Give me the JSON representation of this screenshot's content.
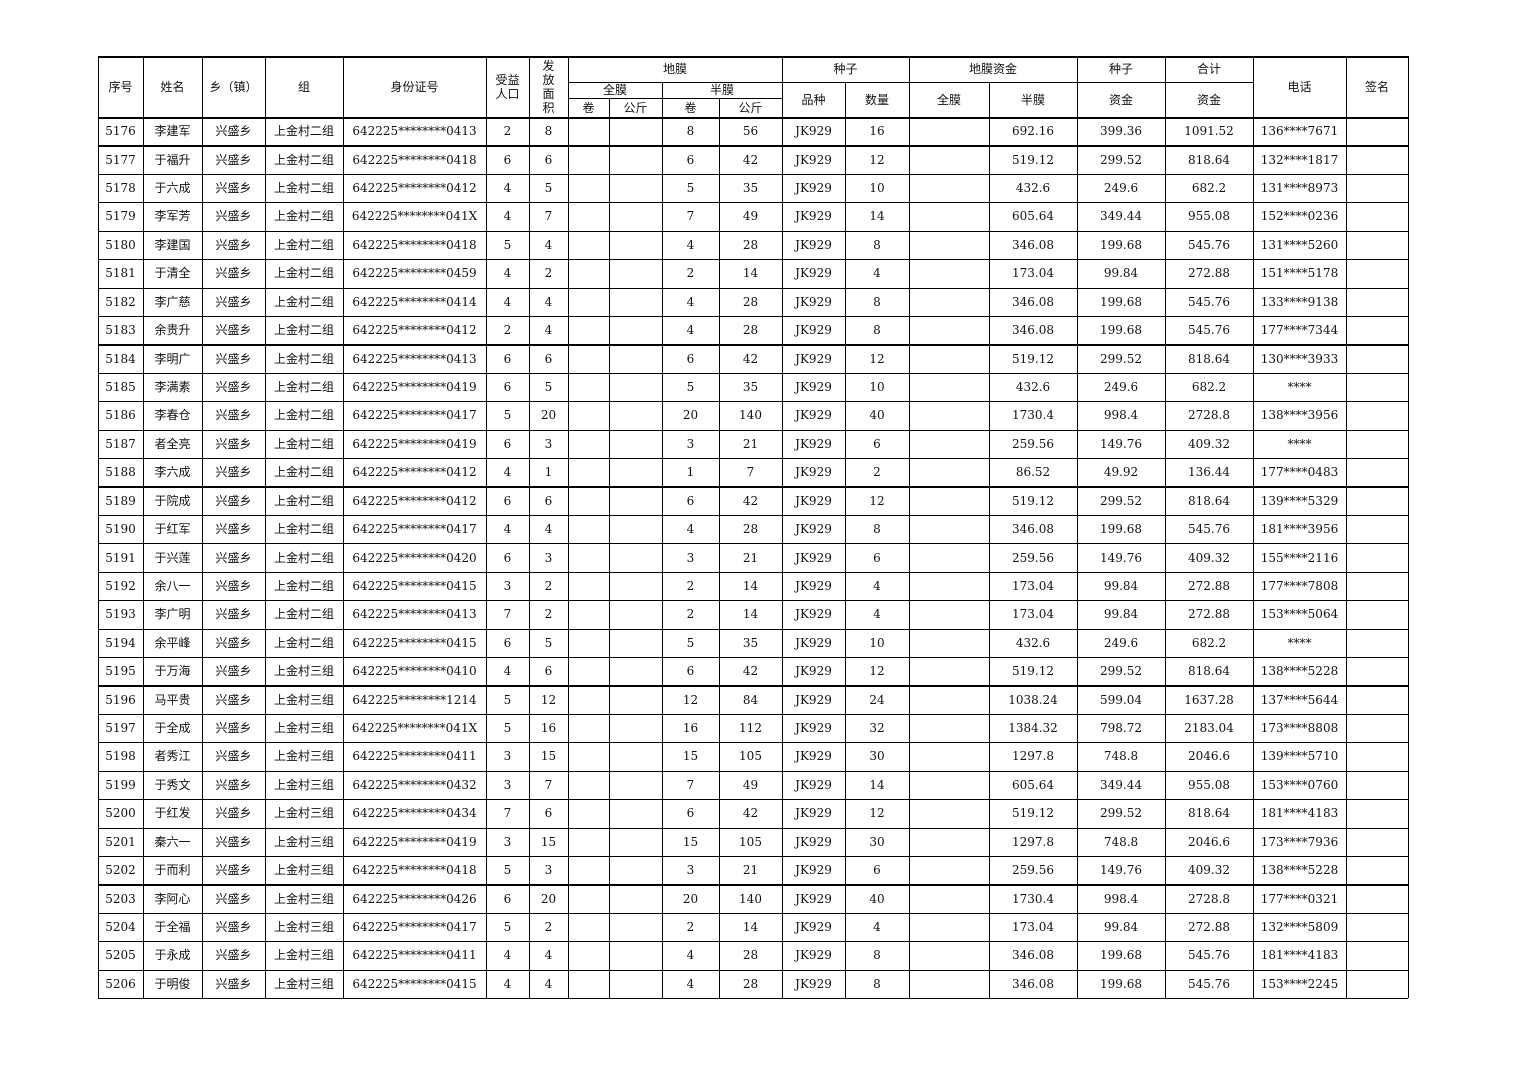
{
  "header": [
    "序号",
    "姓名",
    "乡（镇）",
    "组",
    "身份证号",
    "受益人口",
    "发放面积",
    "地膜",
    "全膜",
    "半膜",
    "卷",
    "公斤",
    "卷",
    "公斤",
    "种子",
    "品种",
    "数量",
    "地膜资金",
    "全膜",
    "半膜",
    "种子",
    "资金",
    "合计",
    "资金",
    "电话",
    "签名"
  ],
  "table": {
    "rows": [
      [
        "5176",
        "李建军",
        "兴盛乡",
        "上金村二组",
        "642225********0413",
        "2",
        "8",
        "8",
        "56",
        "JK929",
        "16",
        "692.16",
        "399.36",
        "1091.52",
        "136****7671"
      ],
      [
        "5177",
        "于福升",
        "兴盛乡",
        "上金村二组",
        "642225********0418",
        "6",
        "6",
        "6",
        "42",
        "JK929",
        "12",
        "519.12",
        "299.52",
        "818.64",
        "132****1817"
      ],
      [
        "5178",
        "于六成",
        "兴盛乡",
        "上金村二组",
        "642225********0412",
        "4",
        "5",
        "5",
        "35",
        "JK929",
        "10",
        "432.6",
        "249.6",
        "682.2",
        "131****8973"
      ],
      [
        "5179",
        "李军芳",
        "兴盛乡",
        "上金村二组",
        "642225********041X",
        "4",
        "7",
        "7",
        "49",
        "JK929",
        "14",
        "605.64",
        "349.44",
        "955.08",
        "152****0236"
      ],
      [
        "5180",
        "李建国",
        "兴盛乡",
        "上金村二组",
        "642225********0418",
        "5",
        "4",
        "4",
        "28",
        "JK929",
        "8",
        "346.08",
        "199.68",
        "545.76",
        "131****5260"
      ],
      [
        "5181",
        "于清全",
        "兴盛乡",
        "上金村二组",
        "642225********0459",
        "4",
        "2",
        "2",
        "14",
        "JK929",
        "4",
        "173.04",
        "99.84",
        "272.88",
        "151****5178"
      ],
      [
        "5182",
        "李广慈",
        "兴盛乡",
        "上金村二组",
        "642225********0414",
        "4",
        "4",
        "4",
        "28",
        "JK929",
        "8",
        "346.08",
        "199.68",
        "545.76",
        "133****9138"
      ],
      [
        "5183",
        "余贵升",
        "兴盛乡",
        "上金村二组",
        "642225********0412",
        "2",
        "4",
        "4",
        "28",
        "JK929",
        "8",
        "346.08",
        "199.68",
        "545.76",
        "177****7344"
      ],
      [
        "5184",
        "李明广",
        "兴盛乡",
        "上金村二组",
        "642225********0413",
        "6",
        "6",
        "6",
        "42",
        "JK929",
        "12",
        "519.12",
        "299.52",
        "818.64",
        "130****3933"
      ],
      [
        "5185",
        "李满素",
        "兴盛乡",
        "上金村二组",
        "642225********0419",
        "6",
        "5",
        "5",
        "35",
        "JK929",
        "10",
        "432.6",
        "249.6",
        "682.2",
        "****"
      ],
      [
        "5186",
        "李春仓",
        "兴盛乡",
        "上金村二组",
        "642225********0417",
        "5",
        "20",
        "20",
        "140",
        "JK929",
        "40",
        "1730.4",
        "998.4",
        "2728.8",
        "138****3956"
      ],
      [
        "5187",
        "者全亮",
        "兴盛乡",
        "上金村二组",
        "642225********0419",
        "6",
        "3",
        "3",
        "21",
        "JK929",
        "6",
        "259.56",
        "149.76",
        "409.32",
        "****"
      ],
      [
        "5188",
        "李六成",
        "兴盛乡",
        "上金村二组",
        "642225********0412",
        "4",
        "1",
        "1",
        "7",
        "JK929",
        "2",
        "86.52",
        "49.92",
        "136.44",
        "177****0483"
      ],
      [
        "5189",
        "于院成",
        "兴盛乡",
        "上金村二组",
        "642225********0412",
        "6",
        "6",
        "6",
        "42",
        "JK929",
        "12",
        "519.12",
        "299.52",
        "818.64",
        "139****5329"
      ],
      [
        "5190",
        "于红军",
        "兴盛乡",
        "上金村二组",
        "642225********0417",
        "4",
        "4",
        "4",
        "28",
        "JK929",
        "8",
        "346.08",
        "199.68",
        "545.76",
        "181****3956"
      ],
      [
        "5191",
        "于兴莲",
        "兴盛乡",
        "上金村二组",
        "642225********0420",
        "6",
        "3",
        "3",
        "21",
        "JK929",
        "6",
        "259.56",
        "149.76",
        "409.32",
        "155****2116"
      ],
      [
        "5192",
        "余八一",
        "兴盛乡",
        "上金村二组",
        "642225********0415",
        "3",
        "2",
        "2",
        "14",
        "JK929",
        "4",
        "173.04",
        "99.84",
        "272.88",
        "177****7808"
      ],
      [
        "5193",
        "李广明",
        "兴盛乡",
        "上金村二组",
        "642225********0413",
        "7",
        "2",
        "2",
        "14",
        "JK929",
        "4",
        "173.04",
        "99.84",
        "272.88",
        "153****5064"
      ],
      [
        "5194",
        "余平峰",
        "兴盛乡",
        "上金村二组",
        "642225********0415",
        "6",
        "5",
        "5",
        "35",
        "JK929",
        "10",
        "432.6",
        "249.6",
        "682.2",
        "****"
      ],
      [
        "5195",
        "于万海",
        "兴盛乡",
        "上金村三组",
        "642225********0410",
        "4",
        "6",
        "6",
        "42",
        "JK929",
        "12",
        "519.12",
        "299.52",
        "818.64",
        "138****5228"
      ],
      [
        "5196",
        "马平贵",
        "兴盛乡",
        "上金村三组",
        "642225********1214",
        "5",
        "12",
        "12",
        "84",
        "JK929",
        "24",
        "1038.24",
        "599.04",
        "1637.28",
        "137****5644"
      ],
      [
        "5197",
        "于全成",
        "兴盛乡",
        "上金村三组",
        "642225********041X",
        "5",
        "16",
        "16",
        "112",
        "JK929",
        "32",
        "1384.32",
        "798.72",
        "2183.04",
        "173****8808"
      ],
      [
        "5198",
        "者秀江",
        "兴盛乡",
        "上金村三组",
        "642225********0411",
        "3",
        "15",
        "15",
        "105",
        "JK929",
        "30",
        "1297.8",
        "748.8",
        "2046.6",
        "139****5710"
      ],
      [
        "5199",
        "于秀文",
        "兴盛乡",
        "上金村三组",
        "642225********0432",
        "3",
        "7",
        "7",
        "49",
        "JK929",
        "14",
        "605.64",
        "349.44",
        "955.08",
        "153****0760"
      ],
      [
        "5200",
        "于红发",
        "兴盛乡",
        "上金村三组",
        "642225********0434",
        "7",
        "6",
        "6",
        "42",
        "JK929",
        "12",
        "519.12",
        "299.52",
        "818.64",
        "181****4183"
      ],
      [
        "5201",
        "秦六一",
        "兴盛乡",
        "上金村三组",
        "642225********0419",
        "3",
        "15",
        "15",
        "105",
        "JK929",
        "30",
        "1297.8",
        "748.8",
        "2046.6",
        "173****7936"
      ],
      [
        "5202",
        "于而利",
        "兴盛乡",
        "上金村三组",
        "642225********0418",
        "5",
        "3",
        "3",
        "21",
        "JK929",
        "6",
        "259.56",
        "149.76",
        "409.32",
        "138****5228"
      ],
      [
        "5203",
        "李阿心",
        "兴盛乡",
        "上金村三组",
        "642225********0426",
        "6",
        "20",
        "20",
        "140",
        "JK929",
        "40",
        "1730.4",
        "998.4",
        "2728.8",
        "177****0321"
      ],
      [
        "5204",
        "于全福",
        "兴盛乡",
        "上金村三组",
        "642225********0417",
        "5",
        "2",
        "2",
        "14",
        "JK929",
        "4",
        "173.04",
        "99.84",
        "272.88",
        "132****5809"
      ],
      [
        "5205",
        "于永成",
        "兴盛乡",
        "上金村三组",
        "642225********0411",
        "4",
        "4",
        "4",
        "28",
        "JK929",
        "8",
        "346.08",
        "199.68",
        "545.76",
        "181****4183"
      ],
      [
        "5206",
        "于明俊",
        "兴盛乡",
        "上金村三组",
        "642225********0415",
        "4",
        "4",
        "4",
        "28",
        "JK929",
        "8",
        "346.08",
        "199.68",
        "545.76",
        "153****2245"
      ]
    ]
  }
}
